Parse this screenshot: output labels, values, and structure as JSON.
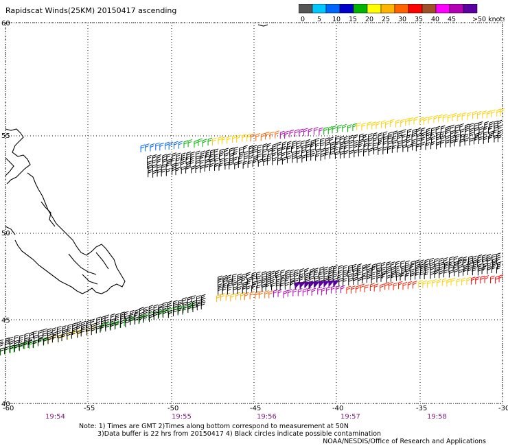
{
  "title": "Rapidscat Winds(25KM) 20150417 ascending",
  "legend": {
    "colors": [
      "#555555",
      "#00c8ff",
      "#0064ff",
      "#0000c8",
      "#00b400",
      "#ffff00",
      "#ffb400",
      "#ff6400",
      "#ff0000",
      "#a05028",
      "#ff00ff",
      "#b400b4",
      "#5a00a0"
    ],
    "labels": [
      "0",
      "5",
      "10",
      "15",
      "20",
      "25",
      "30",
      "35",
      "40",
      "45",
      ">50 knots"
    ]
  },
  "axes": {
    "lon_ticks": [
      "-60",
      "-55",
      "-50",
      "-45",
      "-40",
      "-35",
      "-30"
    ],
    "lat_ticks": [
      "60",
      "55",
      "50",
      "45",
      "40"
    ],
    "times": [
      "19:54",
      "19:55",
      "19:56",
      "19:57",
      "19:58"
    ]
  },
  "notes": {
    "line1": "Note:  1) Times are GMT  2)Times along bottom correspond to measurement at 50N",
    "line2": "3)Data buffer is 22 hrs from 20150417  4) Black circles indicate possible contamination"
  },
  "credit": "NOAA/NESDIS/Office of Research and Applications"
}
